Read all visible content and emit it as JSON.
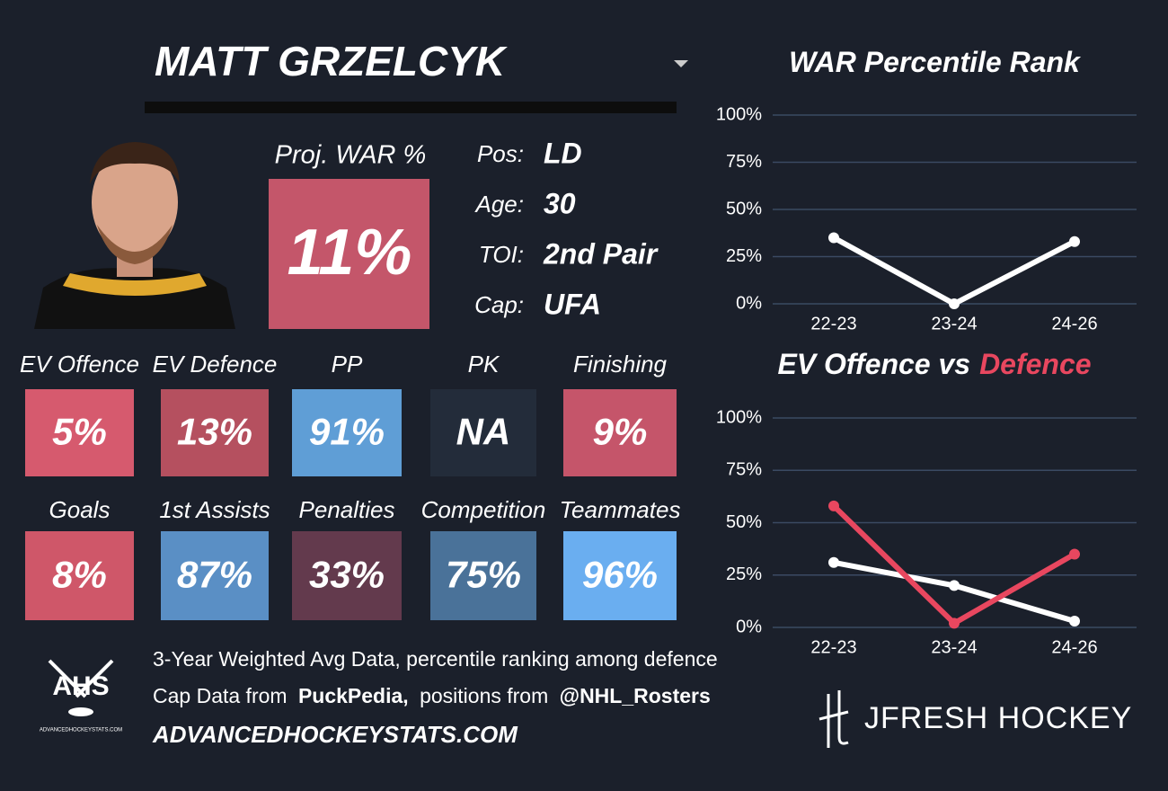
{
  "header": {
    "name": "MATT GRZELCYK",
    "proj_label": "Proj. WAR %",
    "proj_value": "11%",
    "proj_color": "#c4566a"
  },
  "info": [
    {
      "label": "Pos:",
      "value": "LD"
    },
    {
      "label": "Age:",
      "value": "30"
    },
    {
      "label": "TOI:",
      "value": "2nd Pair"
    },
    {
      "label": "Cap:",
      "value": "UFA"
    }
  ],
  "tiles": [
    {
      "label": "EV Offence",
      "value": "5%",
      "color": "#d65a6e"
    },
    {
      "label": "EV Defence",
      "value": "13%",
      "color": "#b5505f"
    },
    {
      "label": "PP",
      "value": "91%",
      "color": "#5f9ed6"
    },
    {
      "label": "PK",
      "value": "NA",
      "color": "#232c3a"
    },
    {
      "label": "Finishing",
      "value": "9%",
      "color": "#c5556a"
    },
    {
      "label": "Goals",
      "value": "8%",
      "color": "#cf5769"
    },
    {
      "label": "1st Assists",
      "value": "87%",
      "color": "#5a8fc5"
    },
    {
      "label": "Penalties",
      "value": "33%",
      "color": "#633a4d"
    },
    {
      "label": "Competition",
      "value": "75%",
      "color": "#4a7299"
    },
    {
      "label": "Teammates",
      "value": "96%",
      "color": "#6aaef0"
    }
  ],
  "footer": {
    "line1": "3-Year Weighted Avg Data, percentile ranking among defence",
    "line2": [
      "Cap Data from",
      "PuckPedia,",
      "positions from",
      "@NHL_Rosters"
    ],
    "site": "ADVANCEDHOCKEYSTATS.COM",
    "logo": "AHS",
    "logo_sub": "ADVANCEDHOCKEYSTATS.COM",
    "brand": "JFRESH HOCKEY"
  },
  "chart_data": [
    {
      "type": "line",
      "title": "WAR Percentile Rank",
      "categories": [
        "22-23",
        "23-24",
        "24-26"
      ],
      "series": [
        {
          "color": "#ffffff",
          "values": [
            35,
            0,
            33
          ]
        }
      ],
      "ylim": [
        0,
        100
      ],
      "yticks": [
        {
          "value": 0,
          "label": "0%"
        },
        {
          "value": 25,
          "label": "25%"
        },
        {
          "value": 50,
          "label": "50%"
        },
        {
          "value": 75,
          "label": "75%"
        },
        {
          "value": 100,
          "label": "100%"
        }
      ],
      "grid": true
    },
    {
      "type": "line",
      "title": "EV Offence vs",
      "title_highlight": "Defence",
      "categories": [
        "22-23",
        "23-24",
        "24-26"
      ],
      "series": [
        {
          "color": "#ffffff",
          "values": [
            31,
            20,
            3
          ]
        },
        {
          "color": "#e8475f",
          "values": [
            58,
            2,
            35
          ]
        }
      ],
      "ylim": [
        0,
        100
      ],
      "yticks": [
        {
          "value": 0,
          "label": "0%"
        },
        {
          "value": 25,
          "label": "25%"
        },
        {
          "value": 50,
          "label": "50%"
        },
        {
          "value": 75,
          "label": "75%"
        },
        {
          "value": 100,
          "label": "100%"
        }
      ],
      "grid": true
    }
  ]
}
